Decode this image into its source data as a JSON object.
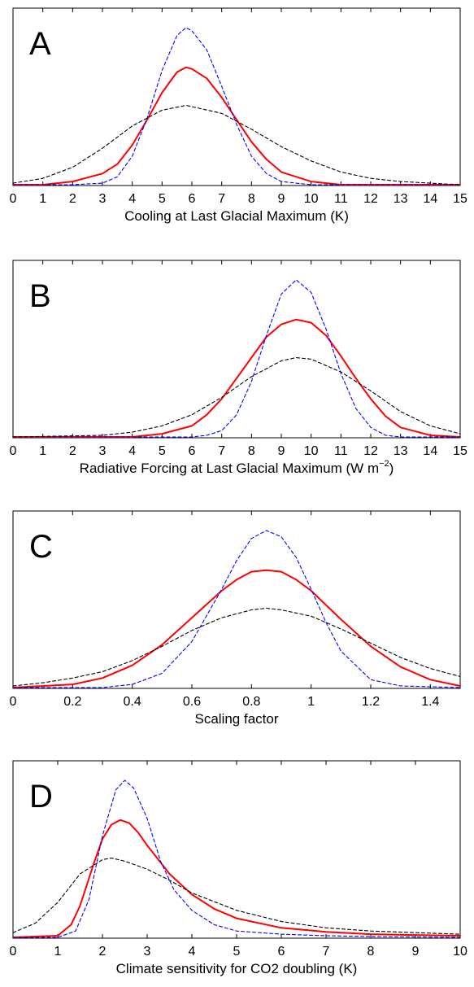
{
  "chart_data": [
    {
      "type": "line",
      "panel_label": "A",
      "xlabel": "Cooling at Last Glacial Maximum (K)",
      "xlim": [
        0,
        15
      ],
      "ylim": [
        0,
        1
      ],
      "xticks": [
        0,
        1,
        2,
        3,
        4,
        5,
        6,
        7,
        8,
        9,
        10,
        11,
        12,
        13,
        14,
        15
      ],
      "xtick_labels": [
        "0",
        "1",
        "2",
        "3",
        "4",
        "5",
        "6",
        "7",
        "8",
        "9",
        "10",
        "11",
        "12",
        "13",
        "14",
        "15"
      ],
      "grid": false,
      "y_tick_labels_shown": false,
      "series": [
        {
          "style": "solid",
          "color": "#ff0000",
          "x": [
            0,
            1,
            2,
            3,
            3.5,
            4,
            4.5,
            5,
            5.5,
            5.8,
            6,
            6.5,
            7,
            7.5,
            8,
            8.5,
            9,
            10,
            11,
            12,
            15
          ],
          "y": [
            0.0,
            0.0,
            0.02,
            0.07,
            0.13,
            0.25,
            0.41,
            0.58,
            0.71,
            0.74,
            0.73,
            0.67,
            0.55,
            0.41,
            0.27,
            0.16,
            0.08,
            0.02,
            0.0,
            0.0,
            0.0
          ]
        },
        {
          "style": "dashed",
          "color": "#0000ff",
          "x": [
            0,
            2,
            3,
            3.5,
            4,
            4.5,
            5,
            5.5,
            5.8,
            6,
            6.5,
            7,
            7.5,
            8,
            8.5,
            9,
            10,
            15
          ],
          "y": [
            0.0,
            0.0,
            0.01,
            0.05,
            0.18,
            0.42,
            0.72,
            0.94,
            0.99,
            0.97,
            0.85,
            0.62,
            0.38,
            0.18,
            0.07,
            0.02,
            0.0,
            0.0
          ]
        },
        {
          "style": "dashed",
          "color": "#000000",
          "x": [
            0,
            1,
            2,
            3,
            4,
            5,
            5.8,
            7,
            8,
            9,
            10,
            11,
            12,
            13,
            14,
            15
          ],
          "y": [
            0.01,
            0.04,
            0.11,
            0.23,
            0.37,
            0.47,
            0.5,
            0.45,
            0.35,
            0.24,
            0.15,
            0.08,
            0.04,
            0.02,
            0.01,
            0.0
          ]
        }
      ]
    },
    {
      "type": "line",
      "panel_label": "B",
      "xlabel": "Radiative Forcing at Last Glacial Maximum (W m",
      "xlabel_sup": "−2",
      "xlabel_end": ")",
      "xlim": [
        0,
        15
      ],
      "ylim": [
        0,
        1
      ],
      "xticks": [
        0,
        1,
        2,
        3,
        4,
        5,
        6,
        7,
        8,
        9,
        10,
        11,
        12,
        13,
        14,
        15
      ],
      "xtick_labels": [
        "0",
        "1",
        "2",
        "3",
        "4",
        "5",
        "6",
        "7",
        "8",
        "9",
        "10",
        "11",
        "12",
        "13",
        "14",
        "15"
      ],
      "grid": false,
      "y_tick_labels_shown": false,
      "series": [
        {
          "style": "solid",
          "color": "#ff0000",
          "x": [
            0,
            4,
            5,
            6,
            6.5,
            7,
            7.5,
            8,
            8.5,
            9,
            9.5,
            10,
            10.5,
            11,
            11.5,
            12,
            12.5,
            13,
            14,
            15
          ],
          "y": [
            0.0,
            0.0,
            0.02,
            0.07,
            0.14,
            0.24,
            0.37,
            0.5,
            0.63,
            0.71,
            0.74,
            0.72,
            0.64,
            0.51,
            0.37,
            0.24,
            0.13,
            0.06,
            0.01,
            0.0
          ]
        },
        {
          "style": "dashed",
          "color": "#0000ff",
          "x": [
            0,
            6,
            6.5,
            7,
            7.5,
            8,
            8.5,
            9,
            9.5,
            10,
            10.5,
            11,
            11.5,
            12,
            12.5,
            13,
            15
          ],
          "y": [
            0.0,
            0.0,
            0.01,
            0.04,
            0.14,
            0.35,
            0.64,
            0.9,
            0.99,
            0.91,
            0.68,
            0.4,
            0.18,
            0.06,
            0.01,
            0.0,
            0.0
          ]
        },
        {
          "style": "dashed",
          "color": "#000000",
          "x": [
            0,
            3,
            4,
            5,
            6,
            7,
            8,
            9,
            9.5,
            10,
            11,
            12,
            13,
            14,
            15
          ],
          "y": [
            0.0,
            0.01,
            0.03,
            0.07,
            0.14,
            0.25,
            0.38,
            0.48,
            0.5,
            0.49,
            0.41,
            0.29,
            0.16,
            0.07,
            0.02
          ]
        }
      ]
    },
    {
      "type": "line",
      "panel_label": "C",
      "xlabel": "Scaling factor",
      "xlim": [
        0,
        1.5
      ],
      "ylim": [
        0,
        1
      ],
      "xticks": [
        0,
        0.2,
        0.4,
        0.6,
        0.8,
        1,
        1.2,
        1.4
      ],
      "xtick_labels": [
        "0",
        "0.2",
        "0.4",
        "0.6",
        "0.8",
        "1",
        "1.2",
        "1.4"
      ],
      "grid": false,
      "y_tick_labels_shown": false,
      "series": [
        {
          "style": "solid",
          "color": "#ff0000",
          "x": [
            0,
            0.2,
            0.3,
            0.4,
            0.5,
            0.6,
            0.7,
            0.75,
            0.8,
            0.85,
            0.9,
            0.95,
            1.0,
            1.05,
            1.1,
            1.2,
            1.3,
            1.4,
            1.5
          ],
          "y": [
            0.0,
            0.02,
            0.06,
            0.14,
            0.27,
            0.44,
            0.61,
            0.68,
            0.73,
            0.74,
            0.73,
            0.68,
            0.61,
            0.52,
            0.43,
            0.26,
            0.13,
            0.05,
            0.01
          ]
        },
        {
          "style": "dashed",
          "color": "#0000ff",
          "x": [
            0,
            0.3,
            0.4,
            0.5,
            0.6,
            0.7,
            0.75,
            0.8,
            0.85,
            0.9,
            0.95,
            1.0,
            1.05,
            1.1,
            1.2,
            1.3,
            1.5
          ],
          "y": [
            0.0,
            0.0,
            0.02,
            0.09,
            0.29,
            0.62,
            0.8,
            0.94,
            0.99,
            0.95,
            0.82,
            0.62,
            0.41,
            0.23,
            0.05,
            0.01,
            0.0
          ]
        },
        {
          "style": "dashed",
          "color": "#000000",
          "x": [
            0,
            0.1,
            0.2,
            0.3,
            0.4,
            0.5,
            0.6,
            0.7,
            0.8,
            0.85,
            0.9,
            1.0,
            1.1,
            1.2,
            1.3,
            1.4,
            1.5
          ],
          "y": [
            0.01,
            0.03,
            0.06,
            0.1,
            0.17,
            0.26,
            0.36,
            0.44,
            0.49,
            0.5,
            0.49,
            0.45,
            0.37,
            0.28,
            0.19,
            0.12,
            0.07
          ]
        }
      ]
    },
    {
      "type": "line",
      "panel_label": "D",
      "xlabel": "Climate sensitivity for CO2 doubling (K)",
      "xlim": [
        0,
        10
      ],
      "ylim": [
        0,
        1
      ],
      "xticks": [
        0,
        1,
        2,
        3,
        4,
        5,
        6,
        7,
        8,
        9,
        10
      ],
      "xtick_labels": [
        "0",
        "1",
        "2",
        "3",
        "4",
        "5",
        "6",
        "7",
        "8",
        "9",
        "10"
      ],
      "grid": false,
      "y_tick_labels_shown": false,
      "series": [
        {
          "style": "solid",
          "color": "#ff0000",
          "x": [
            0,
            1,
            1.3,
            1.5,
            1.8,
            2,
            2.2,
            2.4,
            2.6,
            2.8,
            3,
            3.5,
            4,
            4.5,
            5,
            6,
            7,
            8,
            9,
            10
          ],
          "y": [
            0.0,
            0.01,
            0.08,
            0.2,
            0.46,
            0.62,
            0.71,
            0.74,
            0.72,
            0.66,
            0.58,
            0.4,
            0.27,
            0.18,
            0.12,
            0.06,
            0.035,
            0.02,
            0.015,
            0.01
          ]
        },
        {
          "style": "dashed",
          "color": "#0000ff",
          "x": [
            0,
            1,
            1.4,
            1.7,
            2,
            2.3,
            2.5,
            2.7,
            3,
            3.3,
            3.6,
            4,
            4.5,
            5,
            6,
            7,
            8,
            10
          ],
          "y": [
            0.0,
            0.0,
            0.04,
            0.24,
            0.64,
            0.93,
            0.99,
            0.94,
            0.75,
            0.48,
            0.3,
            0.17,
            0.08,
            0.04,
            0.02,
            0.01,
            0.005,
            0.0
          ]
        },
        {
          "style": "dashed",
          "color": "#000000",
          "x": [
            0,
            0.5,
            1,
            1.5,
            2,
            2.2,
            2.5,
            3,
            3.5,
            4,
            5,
            6,
            7,
            8,
            9,
            10
          ],
          "y": [
            0.03,
            0.09,
            0.22,
            0.4,
            0.49,
            0.5,
            0.48,
            0.43,
            0.36,
            0.28,
            0.17,
            0.1,
            0.06,
            0.04,
            0.03,
            0.02
          ]
        }
      ]
    }
  ]
}
